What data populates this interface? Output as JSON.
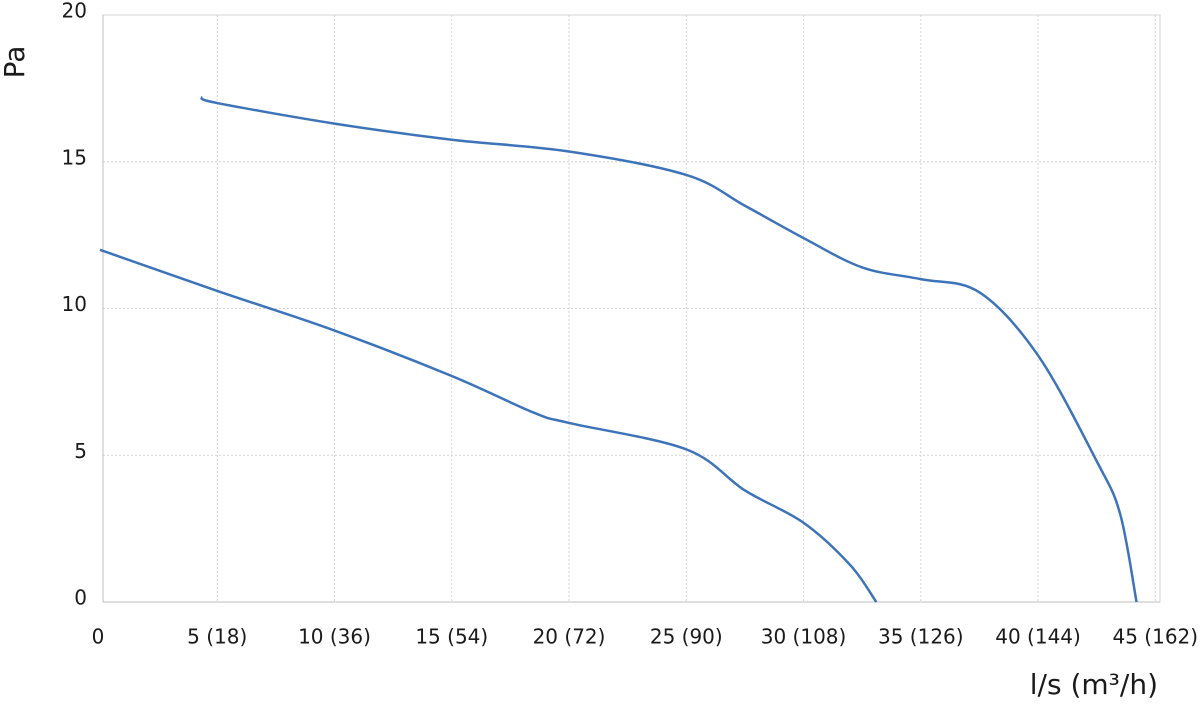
{
  "chart_data": {
    "type": "line",
    "x_label": "l/s (m³/h)",
    "y_label": "Pa",
    "series": [
      {
        "color": "#3d74b9",
        "x": [
          4.3,
          5,
          10,
          15,
          20,
          25,
          27.5,
          30,
          32.5,
          35,
          37.5,
          40,
          42.5,
          43.5,
          44.2
        ],
        "values": [
          17.2,
          17.0,
          16.3,
          15.75,
          15.35,
          14.55,
          13.5,
          12.4,
          11.4,
          11.0,
          10.55,
          8.4,
          4.8,
          3.0,
          0
        ]
      },
      {
        "color": "#3d74b9",
        "x": [
          0,
          5,
          10,
          15,
          18.5,
          20,
          25,
          27.5,
          30,
          32,
          33.1
        ],
        "values": [
          12,
          10.6,
          9.25,
          7.7,
          6.45,
          6.1,
          5.2,
          3.8,
          2.7,
          1.25,
          0
        ]
      }
    ],
    "xlim": [
      0,
      45.2
    ],
    "ylim": [
      0,
      20
    ],
    "xticks": [
      0,
      {
        "value": 5,
        "label": "5 (18)"
      },
      {
        "value": 10,
        "label": "10 (36)"
      },
      {
        "value": 15,
        "label": "15 (54)"
      },
      {
        "value": 20,
        "label": "20 (72)"
      },
      {
        "value": 25,
        "label": "25 (90)"
      },
      {
        "value": 30,
        "label": "30 (108)"
      },
      {
        "value": 35,
        "label": "35 (126)"
      },
      {
        "value": 40,
        "label": "40 (144)"
      },
      {
        "value": 45,
        "label": "45 (162)"
      }
    ],
    "yticks": [
      0,
      5,
      10,
      15,
      20
    ],
    "grid": true
  }
}
